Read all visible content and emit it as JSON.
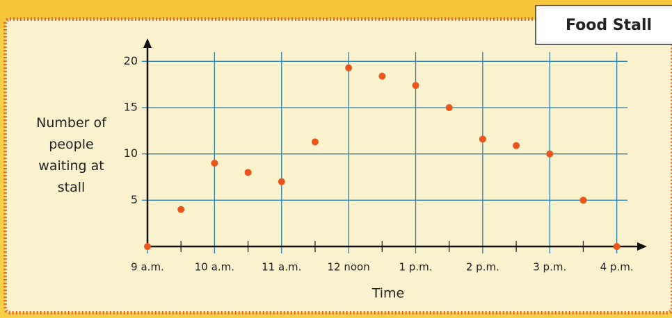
{
  "chart_data": {
    "type": "scatter",
    "title": "Food Stall",
    "x_label": "Time",
    "y_label": "Number of people waiting at stall",
    "x": [
      9,
      9.5,
      10,
      10.5,
      11,
      11.5,
      12,
      12.5,
      13,
      13.5,
      14,
      14.5,
      15,
      15.5,
      16
    ],
    "values": [
      0,
      4,
      9,
      8,
      7,
      11.3,
      19.3,
      18.4,
      17.4,
      15,
      11.6,
      10.9,
      10,
      5,
      0
    ],
    "color": "#e8561c",
    "grid_color": "#2a7fb0",
    "grid": true,
    "xlim": [
      9,
      16.45
    ],
    "ylim": [
      0,
      22.5
    ],
    "xticks": [
      {
        "value": 9,
        "label": "9 a.m."
      },
      {
        "value": 10,
        "label": "10 a.m."
      },
      {
        "value": 11,
        "label": "11 a.m."
      },
      {
        "value": 12,
        "label": "12 noon"
      },
      {
        "value": 13,
        "label": "1 p.m."
      },
      {
        "value": 14,
        "label": "2 p.m."
      },
      {
        "value": 15,
        "label": "3 p.m."
      },
      {
        "value": 16,
        "label": "4 p.m."
      }
    ],
    "xminorticks": [
      9.5,
      10.5,
      11.5,
      12.5,
      13.5,
      14.5,
      15.5
    ],
    "yticks": [
      5,
      10,
      15,
      20
    ]
  }
}
